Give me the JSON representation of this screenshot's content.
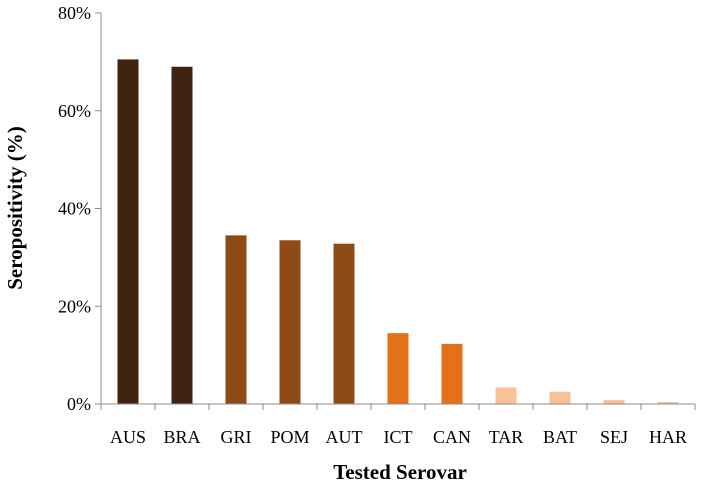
{
  "chart_data": {
    "type": "bar",
    "title": "",
    "xlabel": "Tested Serovar",
    "ylabel": "Seropositivity (%)",
    "ylim": [
      0,
      80
    ],
    "yticks": [
      0,
      20,
      40,
      60,
      80
    ],
    "ytick_labels": [
      "0%",
      "20%",
      "40%",
      "60%",
      "80%"
    ],
    "grid": false,
    "legend": "none",
    "categories": [
      "AUS",
      "BRA",
      "GRI",
      "POM",
      "AUT",
      "ICT",
      "CAN",
      "TAR",
      "BAT",
      "SEJ",
      "HAR"
    ],
    "values": [
      70.5,
      69.0,
      34.5,
      33.5,
      32.8,
      14.5,
      12.3,
      3.4,
      2.5,
      0.8,
      0.4
    ],
    "colors": [
      "#3f2311",
      "#3f2311",
      "#8e4a17",
      "#8e4a17",
      "#8e4a17",
      "#e47018",
      "#e47018",
      "#f8c19a",
      "#f8c19a",
      "#f8c19a",
      "#f8c19a"
    ]
  }
}
